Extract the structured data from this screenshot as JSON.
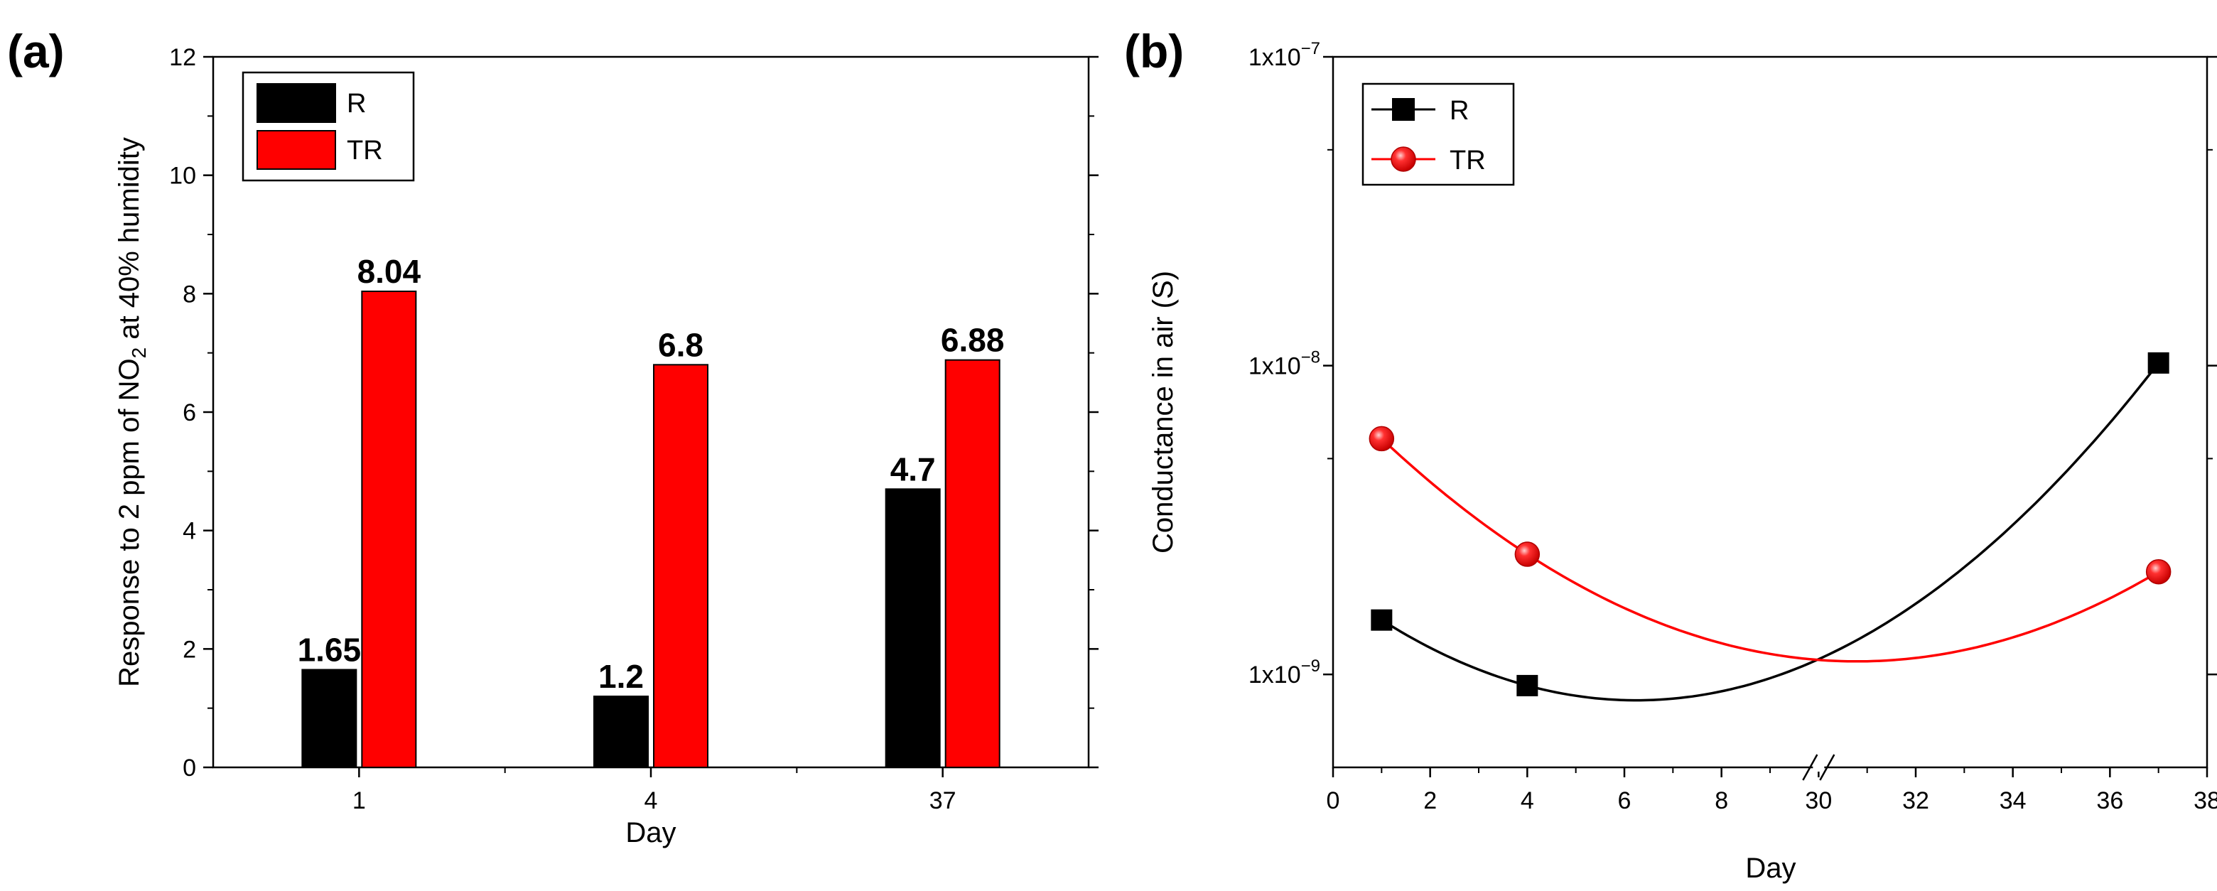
{
  "chart_data": [
    {
      "panel": "(a)",
      "type": "bar",
      "xlabel": "Day",
      "ylabel_pre": "Response to 2 ppm of NO",
      "ylabel_sub": "2",
      "ylabel_post": " at 40% humidity",
      "ylim": [
        0,
        12
      ],
      "yticks": [
        0,
        2,
        4,
        6,
        8,
        10,
        12
      ],
      "categories": [
        "1",
        "4",
        "37"
      ],
      "series": [
        {
          "name": "R",
          "color": "#000000",
          "values": [
            1.65,
            1.2,
            4.7
          ],
          "labels": [
            "1.65",
            "1.2",
            "4.7"
          ]
        },
        {
          "name": "TR",
          "color": "#ff0000",
          "values": [
            8.04,
            6.8,
            6.88
          ],
          "labels": [
            "8.04",
            "6.8",
            "6.88"
          ]
        }
      ],
      "legend": "top-left"
    },
    {
      "panel": "(b)",
      "type": "line",
      "xlabel": "Day",
      "ylabel": "Conductance in air (S)",
      "yscale": "log",
      "ylim": [
        5e-10,
        1e-07
      ],
      "yticks": [
        {
          "value": 1e-09,
          "base": "1x10",
          "exp": "−9"
        },
        {
          "value": 1e-08,
          "base": "1x10",
          "exp": "−8"
        },
        {
          "value": 1e-07,
          "base": "1x10",
          "exp": "−7"
        }
      ],
      "xbreak": {
        "left_max": 10,
        "right_min": 30
      },
      "xticks": [
        "0",
        "2",
        "4",
        "6",
        "8",
        "30",
        "32",
        "34",
        "36",
        "38"
      ],
      "xtick_values": [
        0,
        2,
        4,
        6,
        8,
        30,
        32,
        34,
        36,
        38
      ],
      "series": [
        {
          "name": "R",
          "color": "#000000",
          "marker": "square",
          "x": [
            1,
            4,
            37
          ],
          "y": [
            1.5e-09,
            9.2e-10,
            1.02e-08
          ]
        },
        {
          "name": "TR",
          "color": "#ff0000",
          "marker": "circle",
          "x": [
            1,
            4,
            37
          ],
          "y": [
            5.8e-09,
            2.45e-09,
            2.15e-09
          ]
        }
      ],
      "legend": "top-left"
    }
  ]
}
